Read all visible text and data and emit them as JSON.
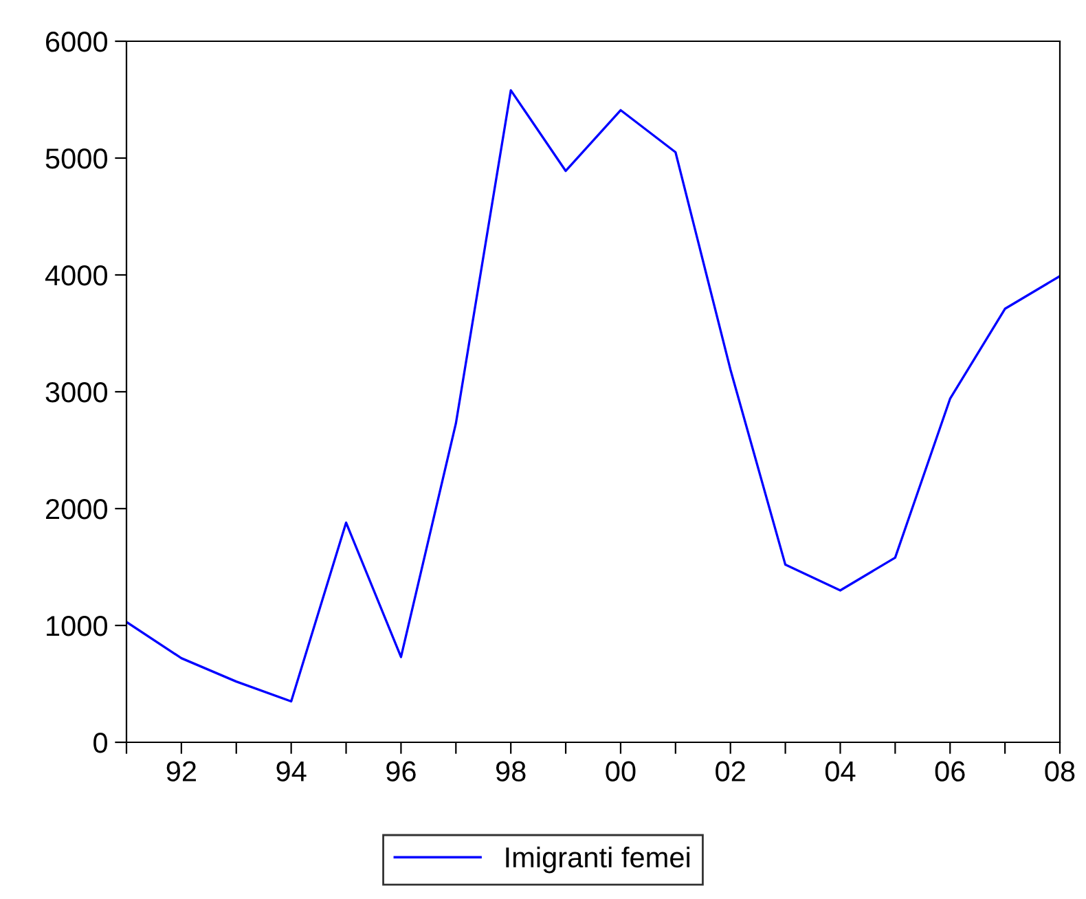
{
  "chart_data": {
    "type": "line",
    "x": [
      1991,
      1992,
      1993,
      1994,
      1995,
      1996,
      1997,
      1998,
      1999,
      2000,
      2001,
      2002,
      2003,
      2004,
      2005,
      2006,
      2007,
      2008
    ],
    "series": [
      {
        "name": "Imigranti femei",
        "color": "#0000ff",
        "values": [
          1030,
          720,
          520,
          350,
          1880,
          730,
          2730,
          5580,
          4890,
          5410,
          5050,
          3190,
          1520,
          1300,
          1580,
          2940,
          3710,
          3990
        ]
      }
    ],
    "xlim": [
      1991,
      2008
    ],
    "xticks": [
      {
        "value": 1991,
        "label": null
      },
      {
        "value": 1992,
        "label": "92"
      },
      {
        "value": 1993,
        "label": null
      },
      {
        "value": 1994,
        "label": "94"
      },
      {
        "value": 1995,
        "label": null
      },
      {
        "value": 1996,
        "label": "96"
      },
      {
        "value": 1997,
        "label": null
      },
      {
        "value": 1998,
        "label": "98"
      },
      {
        "value": 1999,
        "label": null
      },
      {
        "value": 2000,
        "label": "00"
      },
      {
        "value": 2001,
        "label": null
      },
      {
        "value": 2002,
        "label": "02"
      },
      {
        "value": 2003,
        "label": null
      },
      {
        "value": 2004,
        "label": "04"
      },
      {
        "value": 2005,
        "label": null
      },
      {
        "value": 2006,
        "label": "06"
      },
      {
        "value": 2007,
        "label": null
      },
      {
        "value": 2008,
        "label": "08"
      }
    ],
    "ylim": [
      0,
      6000
    ],
    "yticks": [
      0,
      1000,
      2000,
      3000,
      4000,
      5000,
      6000
    ],
    "grid": false,
    "legend": "bottom",
    "marker": "none",
    "line_style": "solid"
  }
}
